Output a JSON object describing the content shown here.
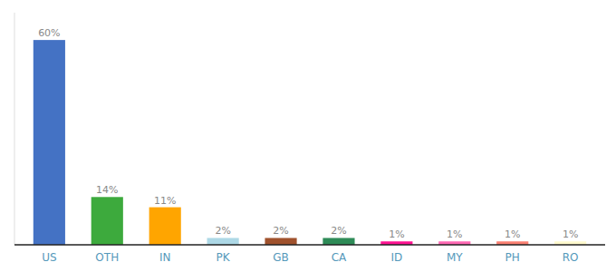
{
  "chart_data": {
    "type": "bar",
    "categories": [
      "US",
      "OTH",
      "IN",
      "PK",
      "GB",
      "CA",
      "ID",
      "MY",
      "PH",
      "RO"
    ],
    "values": [
      60,
      14,
      11,
      2,
      2,
      2,
      1,
      1,
      1,
      1
    ],
    "value_labels": [
      "60%",
      "14%",
      "11%",
      "2%",
      "2%",
      "2%",
      "1%",
      "1%",
      "1%",
      "1%"
    ],
    "colors": [
      "#4472C4",
      "#3DAA3D",
      "#FFA500",
      "#ADD8E6",
      "#A0522D",
      "#2E8B57",
      "#FF1493",
      "#FF69B4",
      "#FA8072",
      "#FFFACD"
    ],
    "ylim": [
      0,
      68
    ],
    "data_labels": true,
    "tick_labels": "x",
    "grid": false
  }
}
